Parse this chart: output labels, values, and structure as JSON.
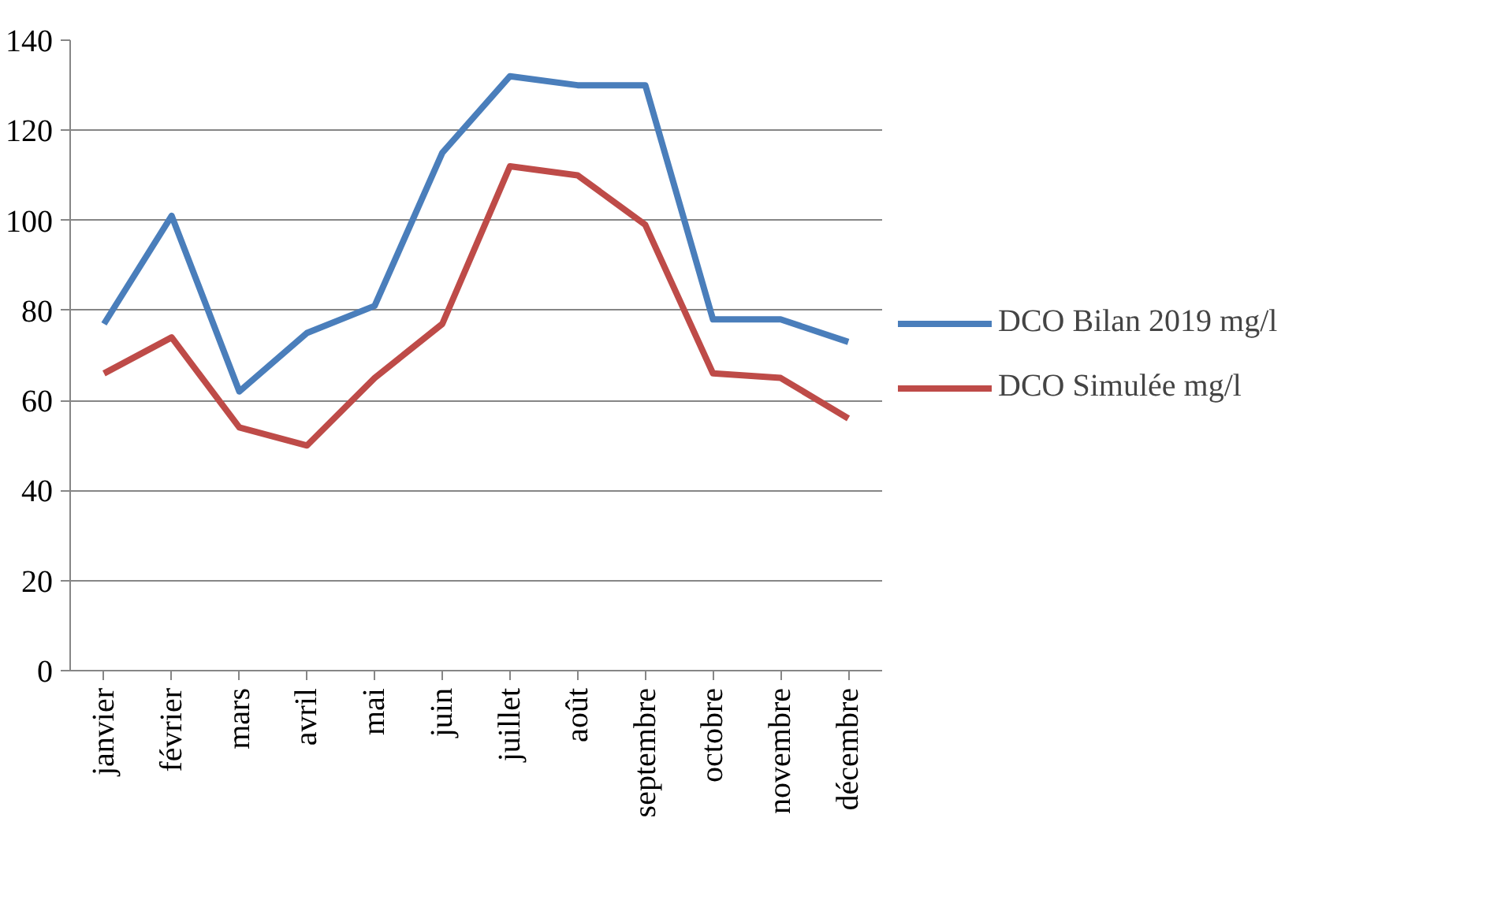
{
  "chart_data": {
    "type": "line",
    "categories": [
      "janvier",
      "février",
      "mars",
      "avril",
      "mai",
      "juin",
      "juillet",
      "août",
      "septembre",
      "octobre",
      "novembre",
      "décembre"
    ],
    "series": [
      {
        "name": "DCO Bilan 2019 mg/l",
        "color": "#4a7ebb",
        "values": [
          77,
          101,
          62,
          75,
          81,
          115,
          132,
          130,
          130,
          78,
          78,
          73
        ]
      },
      {
        "name": "DCO Simulée mg/l",
        "color": "#be4b48",
        "values": [
          66,
          74,
          54,
          50,
          65,
          77,
          112,
          110,
          99,
          66,
          65,
          56
        ]
      }
    ],
    "ylim": [
      0,
      140
    ],
    "yticks": [
      0,
      20,
      40,
      60,
      80,
      100,
      120,
      140
    ],
    "grid": "y",
    "legend": "right",
    "marker": "none",
    "line_style": "solid"
  }
}
